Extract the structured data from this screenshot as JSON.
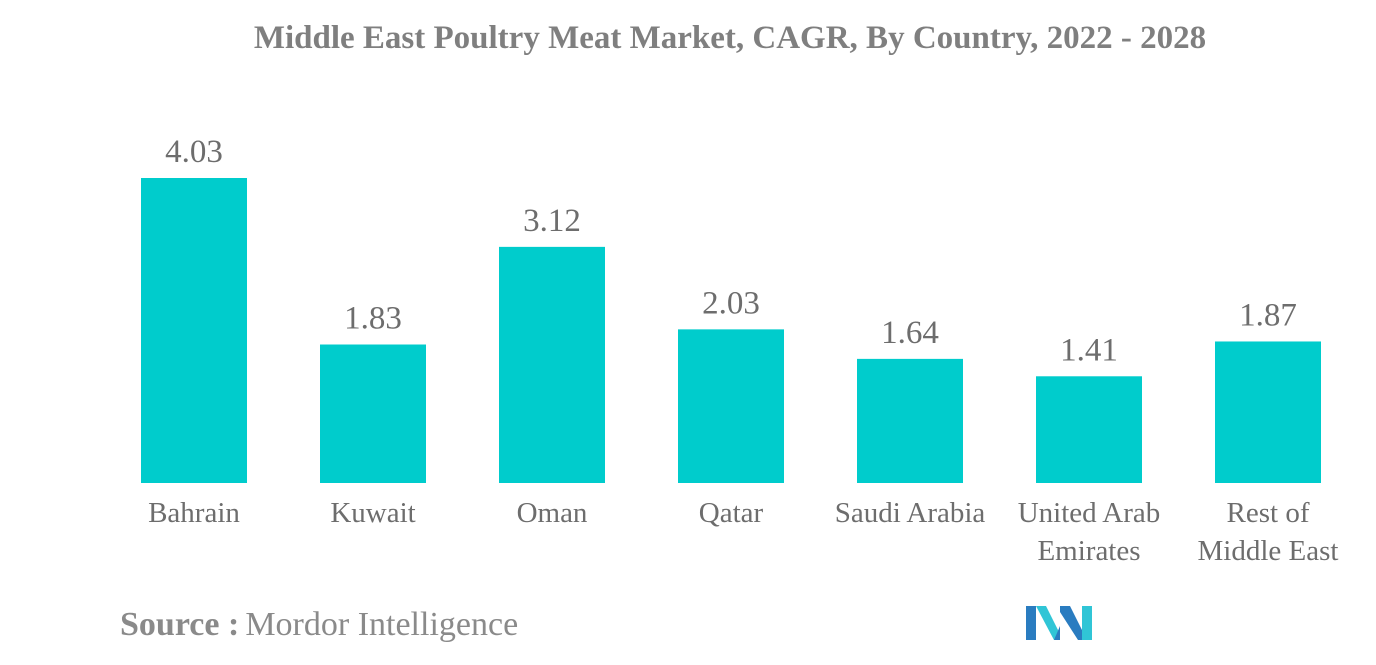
{
  "chart_data": {
    "type": "bar",
    "title": "Middle East Poultry Meat Market, CAGR, By Country, 2022 - 2028",
    "categories": [
      "Bahrain",
      "Kuwait",
      "Oman",
      "Qatar",
      "Saudi Arabia",
      "United Arab Emirates",
      "Rest of Middle East"
    ],
    "category_lines": [
      [
        "Bahrain"
      ],
      [
        "Kuwait"
      ],
      [
        "Oman"
      ],
      [
        "Qatar"
      ],
      [
        "Saudi Arabia"
      ],
      [
        "United Arab",
        "Emirates"
      ],
      [
        "Rest of",
        "Middle East"
      ]
    ],
    "values": [
      4.03,
      1.83,
      3.12,
      2.03,
      1.64,
      1.41,
      1.87
    ],
    "value_labels": [
      "4.03",
      "1.83",
      "3.12",
      "2.03",
      "1.64",
      "1.41",
      "1.87"
    ],
    "xlabel": "",
    "ylabel": "",
    "ylim": [
      0,
      4.03
    ],
    "grid": false,
    "legend": "none",
    "bar_color": "#00cccc",
    "text_color": "#6d6d6d",
    "title_color": "#7f7f7f"
  },
  "footer": {
    "source_label": "Source :",
    "source_value": "Mordor Intelligence"
  },
  "logo": {
    "icon": "mordor-intelligence-logo-icon",
    "colors": [
      "#2a7cc0",
      "#30c5d6"
    ]
  }
}
